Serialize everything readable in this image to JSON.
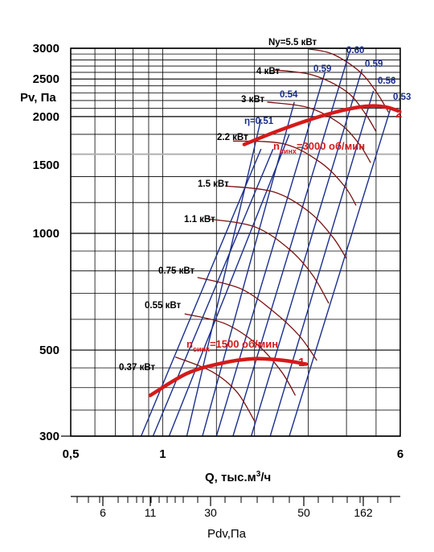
{
  "chart_data": {
    "type": "line",
    "y_scale": "log",
    "x_scale": "log",
    "xlim": [
      0.5,
      6
    ],
    "ylim": [
      300,
      3000
    ],
    "grid": true,
    "y_ticks": [
      3000,
      2500,
      2000,
      1500,
      1000,
      500,
      300
    ],
    "y_label": "Pv, Па",
    "x_ticks": [
      "0,5",
      "1",
      "6"
    ],
    "x_tick_values": [
      0.5,
      1,
      6
    ],
    "x_label": "Q, тыс.м³/ч",
    "x_label_parts": {
      "main": "Q, тыс.м",
      "sup": "3",
      "tail": "/ч"
    },
    "bottom_axis": {
      "ticks": [
        "6",
        "11",
        "30",
        "50",
        "162"
      ],
      "label": "Pdv,Па"
    },
    "fan_curves": [
      {
        "label": "1",
        "speed_label_n": "n",
        "speed_label_sub": "синх",
        "speed_label_rest": "=1500 об/мин",
        "color": "#d41a1a",
        "points": [
          [
            0.91,
            382
          ],
          [
            1.2,
            435
          ],
          [
            1.55,
            462
          ],
          [
            2.0,
            475
          ],
          [
            2.5,
            470
          ],
          [
            2.95,
            460
          ]
        ]
      },
      {
        "label": "2",
        "speed_label_n": "n",
        "speed_label_sub": "синх",
        "speed_label_rest": "=3000 об/мин",
        "color": "#d41a1a",
        "points": [
          [
            1.85,
            1695
          ],
          [
            2.4,
            1840
          ],
          [
            3.2,
            1990
          ],
          [
            4.1,
            2095
          ],
          [
            4.8,
            2130
          ],
          [
            5.4,
            2115
          ],
          [
            5.9,
            2070
          ]
        ]
      }
    ],
    "power_curves": [
      {
        "label": "0.37 кВт",
        "points": [
          [
            1.1,
            480
          ],
          [
            1.45,
            440
          ],
          [
            1.75,
            390
          ],
          [
            2.0,
            328
          ]
        ]
      },
      {
        "label": "0.55 кВт",
        "points": [
          [
            1.18,
            620
          ],
          [
            1.6,
            585
          ],
          [
            2.05,
            515
          ],
          [
            2.45,
            440
          ],
          [
            2.72,
            382
          ]
        ]
      },
      {
        "label": "0.75 кВт",
        "points": [
          [
            1.3,
            770
          ],
          [
            1.8,
            720
          ],
          [
            2.3,
            630
          ],
          [
            2.8,
            545
          ],
          [
            3.2,
            470
          ]
        ]
      },
      {
        "label": "1.1 кВт",
        "points": [
          [
            1.4,
            1090
          ],
          [
            2.0,
            1040
          ],
          [
            2.6,
            910
          ],
          [
            3.1,
            780
          ],
          [
            3.5,
            660
          ]
        ]
      },
      {
        "label": "1.5 кВт",
        "points": [
          [
            1.6,
            1325
          ],
          [
            2.3,
            1280
          ],
          [
            3.0,
            1140
          ],
          [
            3.6,
            980
          ],
          [
            4.0,
            860
          ]
        ]
      },
      {
        "label": "2.2 кВт",
        "points": [
          [
            1.7,
            1730
          ],
          [
            2.5,
            1700
          ],
          [
            3.3,
            1520
          ],
          [
            3.95,
            1320
          ],
          [
            4.3,
            1180
          ]
        ]
      },
      {
        "label": "3 кВт",
        "points": [
          [
            2.2,
            2180
          ],
          [
            3.0,
            2110
          ],
          [
            3.8,
            1920
          ],
          [
            4.4,
            1700
          ],
          [
            4.8,
            1520
          ]
        ]
      },
      {
        "label": "4 кВт",
        "points": [
          [
            2.3,
            2640
          ],
          [
            3.1,
            2560
          ],
          [
            4.0,
            2320
          ],
          [
            4.6,
            2040
          ],
          [
            5.0,
            1830
          ]
        ]
      },
      {
        "label": "Ny=5.5 кВт",
        "points": [
          [
            3.0,
            2990
          ],
          [
            3.6,
            2900
          ],
          [
            4.4,
            2620
          ],
          [
            5.0,
            2320
          ],
          [
            5.5,
            2050
          ]
        ]
      }
    ],
    "efficiency_lines": [
      {
        "label": "",
        "points": [
          [
            0.85,
            300
          ],
          [
            2.1,
            1650
          ]
        ]
      },
      {
        "label": "",
        "points": [
          [
            0.93,
            300
          ],
          [
            2.3,
            1650
          ]
        ]
      },
      {
        "label": "",
        "points": [
          [
            1.05,
            300
          ],
          [
            2.6,
            1800
          ]
        ]
      },
      {
        "label": "η=0.51",
        "points": [
          [
            1.2,
            300
          ],
          [
            2.1,
            1970
          ]
        ]
      },
      {
        "label": "0.54",
        "points": [
          [
            1.35,
            300
          ],
          [
            2.7,
            2180
          ]
        ]
      },
      {
        "label": "0.59",
        "points": [
          [
            1.5,
            300
          ],
          [
            3.4,
            2600
          ]
        ]
      },
      {
        "label": "0.60",
        "points": [
          [
            1.7,
            300
          ],
          [
            4.1,
            2950
          ]
        ]
      },
      {
        "label": "0.59",
        "points": [
          [
            1.95,
            300
          ],
          [
            4.5,
            2650
          ]
        ]
      },
      {
        "label": "0.56",
        "points": [
          [
            2.25,
            300
          ],
          [
            4.9,
            2330
          ]
        ]
      },
      {
        "label": "0.53",
        "points": [
          [
            2.6,
            300
          ],
          [
            5.6,
            2120
          ]
        ]
      }
    ],
    "reference_line": {
      "y": 1600,
      "color": "#b0b0b0"
    },
    "colors": {
      "fan": "#d41a1a",
      "power": "#7a1010",
      "efficiency": "#1a2e8c",
      "grid": "#000000"
    }
  }
}
